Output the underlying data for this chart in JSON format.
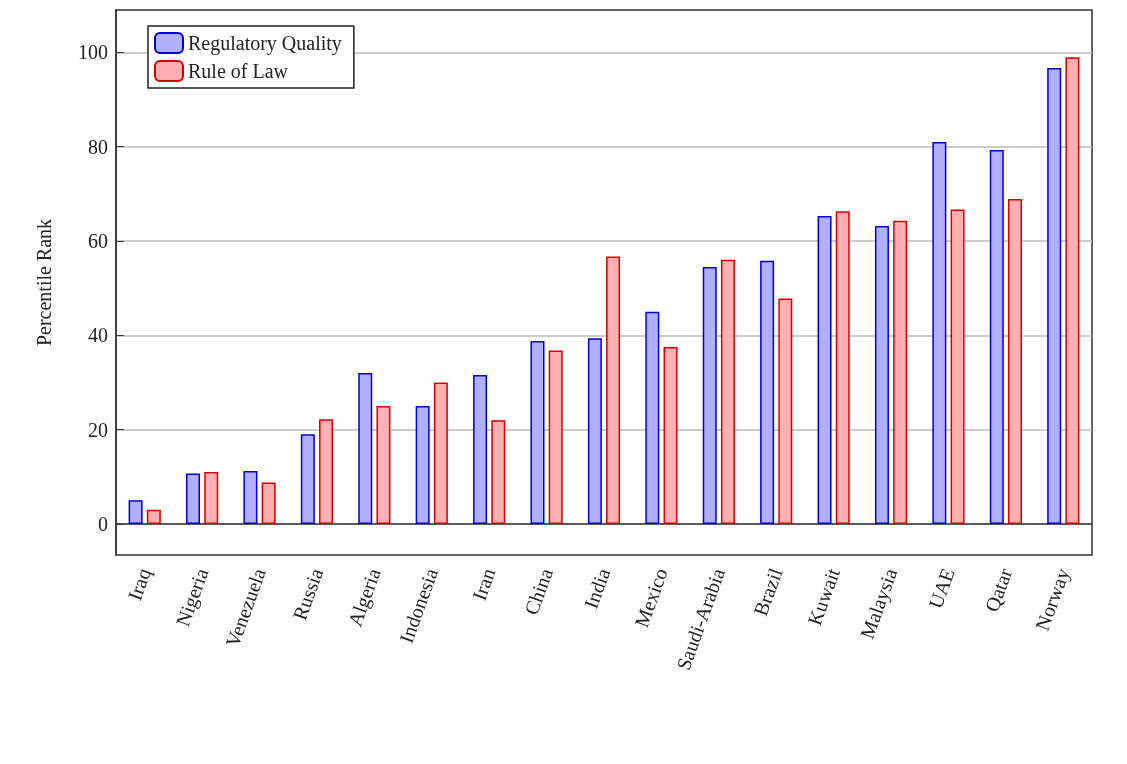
{
  "chart_data": {
    "type": "bar",
    "ylabel": "Percentile Rank",
    "categories": [
      "Iraq",
      "Nigeria",
      "Venezuela",
      "Russia",
      "Algeria",
      "Indonesia",
      "Iran",
      "China",
      "India",
      "Mexico",
      "Saudi-Arabia",
      "Brazil",
      "Kuwait",
      "Malaysia",
      "UAE",
      "Qatar",
      "Norway"
    ],
    "series": [
      {
        "name": "Regulatory Quality",
        "color": "#b0b0ff",
        "values": [
          5,
          10.7,
          11.2,
          19,
          32,
          25,
          31.6,
          38.8,
          39.4,
          45,
          54.5,
          55.8,
          65.3,
          63.2,
          81,
          79.3,
          96.7
        ]
      },
      {
        "name": "Rule of Law",
        "color": "#ffb0b0",
        "values": [
          3,
          11,
          8.8,
          22.2,
          25,
          30,
          22,
          36.8,
          56.7,
          37.5,
          56,
          47.8,
          66.3,
          64.3,
          66.7,
          68.9,
          99
        ]
      }
    ],
    "ylim": [
      -6.6,
      109
    ],
    "yticks": [
      0,
      20,
      40,
      60,
      80,
      100
    ],
    "grid": "y",
    "legend": "top left"
  }
}
